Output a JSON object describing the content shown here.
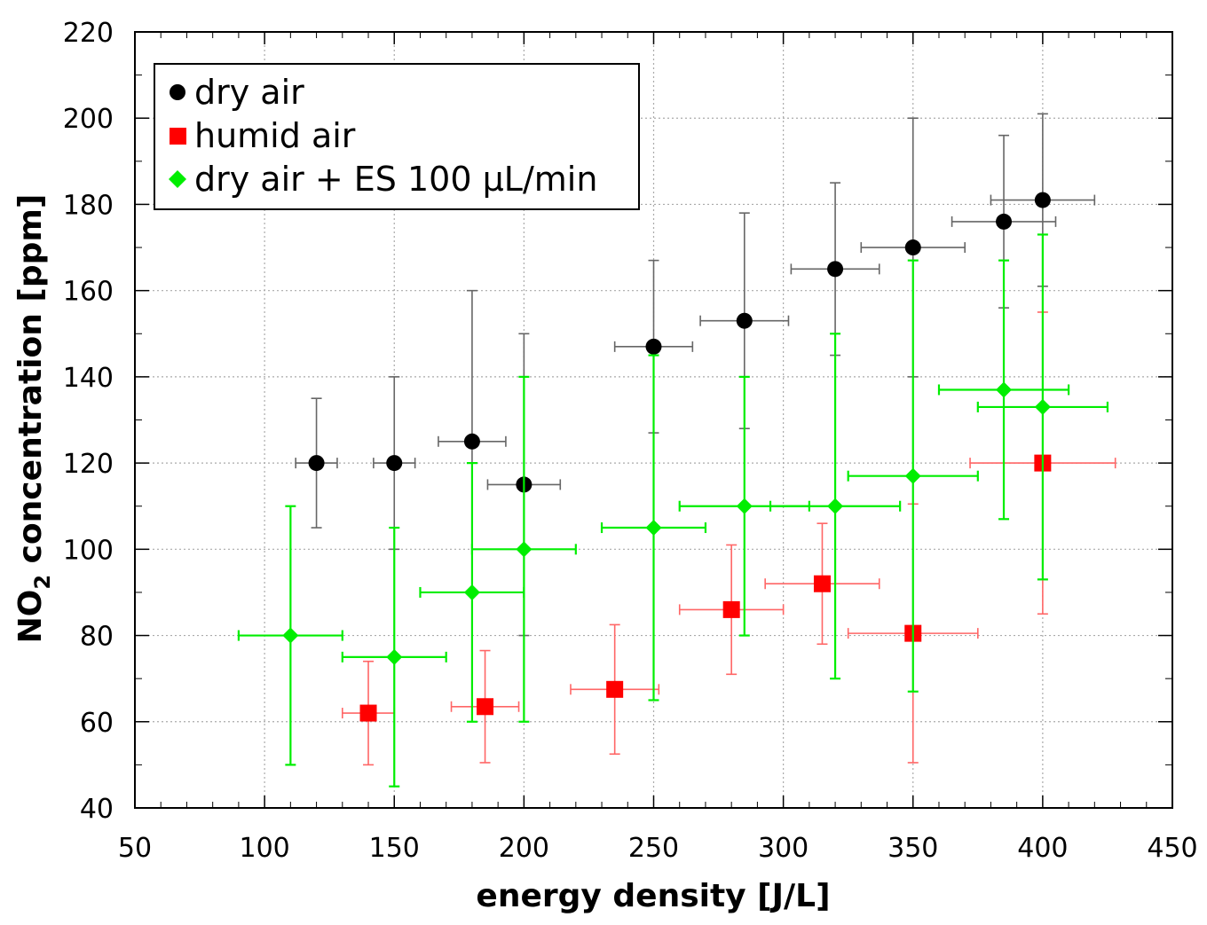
{
  "chart_data": {
    "type": "scatter",
    "title": "",
    "xlabel": "energy density [J/L]",
    "ylabel_main": "NO",
    "ylabel_sub": "2",
    "ylabel_rest": " concentration [ppm]",
    "xlim": [
      50,
      450
    ],
    "ylim": [
      40,
      220
    ],
    "x_ticks": [
      "50",
      "100",
      "150",
      "200",
      "250",
      "300",
      "350",
      "400",
      "450"
    ],
    "y_ticks": [
      "40",
      "60",
      "80",
      "100",
      "120",
      "140",
      "160",
      "180",
      "200",
      "220"
    ],
    "grid": true,
    "legend_position": "top-left",
    "series": [
      {
        "name": "dry air",
        "marker": "circle",
        "color": "#000000",
        "error_color": "#666666",
        "points": [
          {
            "x": 120,
            "y": 120,
            "xerr": 8,
            "ylo": 105,
            "yhi": 135
          },
          {
            "x": 150,
            "y": 120,
            "xerr": 8,
            "ylo": 100,
            "yhi": 140
          },
          {
            "x": 180,
            "y": 125,
            "xerr": 13,
            "ylo": 90,
            "yhi": 160
          },
          {
            "x": 200,
            "y": 115,
            "xerr": 14,
            "ylo": 80,
            "yhi": 150
          },
          {
            "x": 250,
            "y": 147,
            "xerr": 15,
            "ylo": 127,
            "yhi": 167
          },
          {
            "x": 285,
            "y": 153,
            "xerr": 17,
            "ylo": 128,
            "yhi": 178
          },
          {
            "x": 320,
            "y": 165,
            "xerr": 17,
            "ylo": 145,
            "yhi": 185
          },
          {
            "x": 350,
            "y": 170,
            "xerr": 20,
            "ylo": 140,
            "yhi": 200
          },
          {
            "x": 385,
            "y": 176,
            "xerr": 20,
            "ylo": 156,
            "yhi": 196
          },
          {
            "x": 400,
            "y": 181,
            "xerr": 20,
            "ylo": 161,
            "yhi": 201
          }
        ]
      },
      {
        "name": "humid air",
        "marker": "square",
        "color": "#ff0000",
        "error_color": "#ff6666",
        "points": [
          {
            "x": 140,
            "y": 62,
            "xerr": 10,
            "ylo": 50,
            "yhi": 74
          },
          {
            "x": 185,
            "y": 63.5,
            "xerr": 13,
            "ylo": 50.5,
            "yhi": 76.5
          },
          {
            "x": 235,
            "y": 67.5,
            "xerr": 17,
            "ylo": 52.5,
            "yhi": 82.5
          },
          {
            "x": 280,
            "y": 86,
            "xerr": 20,
            "ylo": 71,
            "yhi": 101
          },
          {
            "x": 315,
            "y": 92,
            "xerr": 22,
            "ylo": 78,
            "yhi": 106
          },
          {
            "x": 350,
            "y": 80.5,
            "xerr": 25,
            "ylo": 50.5,
            "yhi": 110.5
          },
          {
            "x": 400,
            "y": 120,
            "xerr": 28,
            "ylo": 85,
            "yhi": 155
          }
        ]
      },
      {
        "name": "dry air + ES 100 µL/min",
        "marker": "diamond",
        "color": "#00ee00",
        "error_color": "#00ee00",
        "points": [
          {
            "x": 110,
            "y": 80,
            "xerr": 20,
            "ylo": 50,
            "yhi": 110
          },
          {
            "x": 150,
            "y": 75,
            "xerr": 20,
            "ylo": 45,
            "yhi": 105
          },
          {
            "x": 180,
            "y": 90,
            "xerr": 20,
            "ylo": 60,
            "yhi": 120
          },
          {
            "x": 200,
            "y": 100,
            "xerr": 20,
            "ylo": 60,
            "yhi": 140
          },
          {
            "x": 250,
            "y": 105,
            "xerr": 20,
            "ylo": 65,
            "yhi": 145
          },
          {
            "x": 285,
            "y": 110,
            "xerr": 25,
            "ylo": 80,
            "yhi": 140
          },
          {
            "x": 320,
            "y": 110,
            "xerr": 25,
            "ylo": 70,
            "yhi": 150
          },
          {
            "x": 350,
            "y": 117,
            "xerr": 25,
            "ylo": 67,
            "yhi": 167
          },
          {
            "x": 385,
            "y": 137,
            "xerr": 25,
            "ylo": 107,
            "yhi": 167
          },
          {
            "x": 400,
            "y": 133,
            "xerr": 25,
            "ylo": 93,
            "yhi": 173
          }
        ]
      }
    ]
  }
}
